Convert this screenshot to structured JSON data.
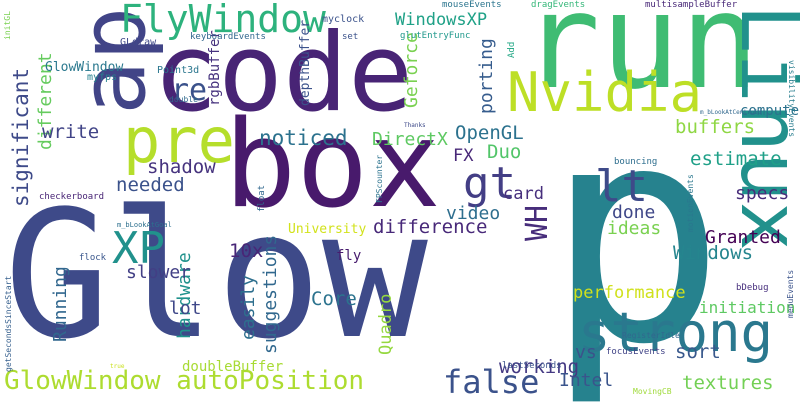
{
  "words": [
    {
      "text": "Glow",
      "color": "#3e4a89"
    },
    {
      "text": "p",
      "color": "#26828e"
    },
    {
      "text": "code",
      "color": "#482475"
    },
    {
      "text": "run",
      "color": "#3fbc73"
    },
    {
      "text": "box",
      "color": "#481a6c"
    },
    {
      "text": "app",
      "color": "#414487"
    },
    {
      "text": "Linux",
      "color": "#21918c"
    },
    {
      "text": "strong",
      "color": "#2a788e"
    },
    {
      "text": "pre",
      "color": "#b5de2b"
    },
    {
      "text": "Nvidia",
      "color": "#bddf26"
    },
    {
      "text": "FlyWindow",
      "color": "#2db27d"
    },
    {
      "text": "false",
      "color": "#3b528b"
    },
    {
      "text": "GlowWindow autoPosition",
      "color": "#addc30"
    },
    {
      "text": "XP",
      "color": "#21918c"
    },
    {
      "text": "lt",
      "color": "#3e4a89"
    },
    {
      "text": "gt",
      "color": "#433e85"
    },
    {
      "text": "re",
      "color": "#3b528b"
    },
    {
      "text": "WH",
      "color": "#472d7b"
    },
    {
      "text": "significant",
      "color": "#3e4a89"
    },
    {
      "text": "different",
      "color": "#65cb5e"
    },
    {
      "text": "GlowWindow",
      "color": "#2a788e"
    },
    {
      "text": "write",
      "color": "#414487"
    },
    {
      "text": "shadow",
      "color": "#46337e"
    },
    {
      "text": "needed",
      "color": "#3b528b"
    },
    {
      "text": "noticed",
      "color": "#2c728e"
    },
    {
      "text": "DirectX",
      "color": "#5ec962"
    },
    {
      "text": "OpenGL",
      "color": "#2c728e"
    },
    {
      "text": "FX",
      "color": "#482878"
    },
    {
      "text": "Duo",
      "color": "#52c569"
    },
    {
      "text": "WindowsXP",
      "color": "#1fa187"
    },
    {
      "text": "Geforce",
      "color": "#7ad151"
    },
    {
      "text": "porting",
      "color": "#365c8d"
    },
    {
      "text": "depthBuffer",
      "color": "#3b528b"
    },
    {
      "text": "rgbBuffer",
      "color": "#46327e"
    },
    {
      "text": "buffers",
      "color": "#8fd744"
    },
    {
      "text": "estimate",
      "color": "#1fa088"
    },
    {
      "text": "specs",
      "color": "#472c7a"
    },
    {
      "text": "computer",
      "color": "#2c728e"
    },
    {
      "text": "card",
      "color": "#472f7d"
    },
    {
      "text": "video",
      "color": "#2e6e8e"
    },
    {
      "text": "done",
      "color": "#3f4788"
    },
    {
      "text": "ideas",
      "color": "#7ad151"
    },
    {
      "text": "difference",
      "color": "#482979"
    },
    {
      "text": "Granted",
      "color": "#440154"
    },
    {
      "text": "Windows",
      "color": "#25858e"
    },
    {
      "text": "10x",
      "color": "#482677"
    },
    {
      "text": "Running",
      "color": "#31678e"
    },
    {
      "text": "hardware",
      "color": "#20928c"
    },
    {
      "text": "slower",
      "color": "#423f85"
    },
    {
      "text": "lot",
      "color": "#3f4889"
    },
    {
      "text": "easily",
      "color": "#2e6f8e"
    },
    {
      "text": "suggestions",
      "color": "#31688e"
    },
    {
      "text": "Core",
      "color": "#2c738e"
    },
    {
      "text": "Quadro",
      "color": "#95d840"
    },
    {
      "text": "performance",
      "color": "#d0e11c"
    },
    {
      "text": "initiation",
      "color": "#5ec962"
    },
    {
      "text": "working",
      "color": "#443983"
    },
    {
      "text": "vs",
      "color": "#3b528b"
    },
    {
      "text": "sort",
      "color": "#38588c"
    },
    {
      "text": "Intel",
      "color": "#3a548c"
    },
    {
      "text": "textures",
      "color": "#73d055"
    },
    {
      "text": "doubleBuffer",
      "color": "#a8db34"
    },
    {
      "text": "fly",
      "color": "#481c6e"
    },
    {
      "text": "University",
      "color": "#d2e21b"
    },
    {
      "text": "Point3d",
      "color": "#2a768e"
    },
    {
      "text": "GLdraw",
      "color": "#3f4889"
    },
    {
      "text": "myfps",
      "color": "#26818e"
    },
    {
      "text": "double",
      "color": "#306a8e"
    },
    {
      "text": "checkerboard",
      "color": "#482475"
    },
    {
      "text": "myclock",
      "color": "#3b528b"
    },
    {
      "text": "set",
      "color": "#3b528b"
    },
    {
      "text": "keyboardEvents",
      "color": "#31678e"
    },
    {
      "text": "glutEntryFunc",
      "color": "#1f988b"
    },
    {
      "text": "mouseEvents",
      "color": "#2b758e"
    },
    {
      "text": "dragEvents",
      "color": "#35b779"
    },
    {
      "text": "multisampleBuffer",
      "color": "#482878"
    },
    {
      "text": "Add",
      "color": "#22a785"
    },
    {
      "text": "Thanks",
      "color": "#3e4a89"
    },
    {
      "text": "bouncing",
      "color": "#2e6e8e"
    },
    {
      "text": "float",
      "color": "#31688e"
    },
    {
      "text": "FPScounter",
      "color": "#2c738e"
    },
    {
      "text": "m_bLookAtGoal",
      "color": "#2d708e"
    },
    {
      "text": "m_bLookAtCentroid",
      "color": "#31688e"
    },
    {
      "text": "visibilityEvents",
      "color": "#287d8e"
    },
    {
      "text": "motionEvents",
      "color": "#2a778e"
    },
    {
      "text": "menuEvents",
      "color": "#3a538b"
    },
    {
      "text": "bDebug",
      "color": "#472f7d"
    },
    {
      "text": "RegisterIdle",
      "color": "#31688e"
    },
    {
      "text": "focusEvents",
      "color": "#414487"
    },
    {
      "text": "lastSeconds",
      "color": "#3b528b"
    },
    {
      "text": "MovingCB",
      "color": "#9fda3a"
    },
    {
      "text": "getSecondsSinceStart",
      "color": "#355f8d"
    },
    {
      "text": "flock",
      "color": "#39568c"
    },
    {
      "text": "initGL",
      "color": "#7ad151"
    },
    {
      "text": "true",
      "color": "#cae11f"
    }
  ]
}
